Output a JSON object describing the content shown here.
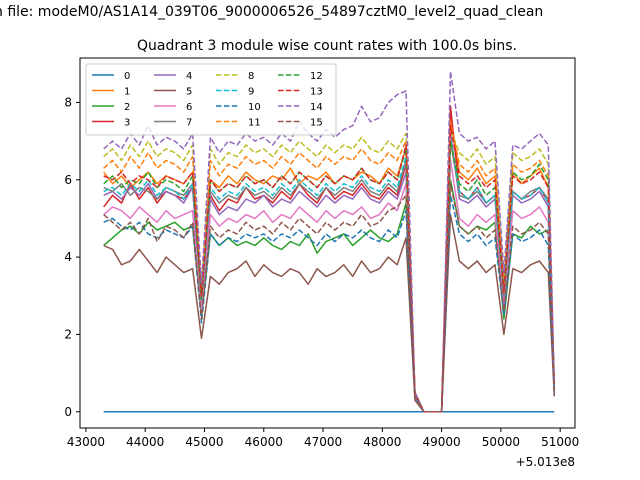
{
  "figure": {
    "suptitle": "n file: modeM0/AS1A14_039T06_9000006526_54897cztM0_level2_quad_clean",
    "title": "Quadrant 3 module wise count rates with 100.0s bins."
  },
  "chart_data": {
    "type": "line",
    "title": "Quadrant 3 module wise count rates with 100.0s bins.",
    "xlabel": "",
    "ylabel": "",
    "x_offset_label": "+5.013e8",
    "xlim": [
      42900,
      51250
    ],
    "ylim": [
      -0.42,
      9.15
    ],
    "xticks": [
      43000,
      44000,
      45000,
      46000,
      47000,
      48000,
      49000,
      50000,
      51000
    ],
    "yticks": [
      0,
      2,
      4,
      6,
      8
    ],
    "legend_loc": "upper left",
    "legend_ncol": 4,
    "x": [
      43300,
      43450,
      43600,
      43750,
      43900,
      44050,
      44200,
      44350,
      44500,
      44650,
      44800,
      44950,
      45100,
      45250,
      45400,
      45550,
      45700,
      45850,
      46000,
      46150,
      46300,
      46450,
      46600,
      46750,
      46900,
      47050,
      47200,
      47350,
      47500,
      47650,
      47800,
      47950,
      48100,
      48250,
      48400,
      48550,
      48700,
      48850,
      49000,
      49150,
      49300,
      49450,
      49600,
      49750,
      49900,
      50050,
      50200,
      50350,
      50500,
      50650,
      50800,
      50900
    ],
    "series": [
      {
        "name": "0",
        "color": "#1f77b4",
        "dash": "solid",
        "values": [
          0,
          0,
          0,
          0,
          0,
          0,
          0,
          0,
          0,
          0,
          0,
          0,
          0,
          0,
          0,
          0,
          0,
          0,
          0,
          0,
          0,
          0,
          0,
          0,
          0,
          0,
          0,
          0,
          0,
          0,
          0,
          0,
          0,
          0,
          0,
          0,
          0,
          0,
          0,
          0,
          0,
          0,
          0,
          0,
          0,
          0,
          0,
          0,
          0,
          0,
          0,
          0
        ]
      },
      {
        "name": "1",
        "color": "#ff7f0e",
        "dash": "solid",
        "values": [
          6.2,
          5.9,
          6.1,
          5.8,
          6.0,
          6.2,
          5.9,
          6.1,
          6.0,
          5.9,
          6.2,
          3.0,
          6.0,
          5.8,
          6.1,
          5.9,
          6.2,
          6.0,
          5.9,
          6.1,
          6.0,
          6.3,
          5.9,
          6.1,
          6.0,
          6.2,
          5.9,
          6.1,
          6.0,
          6.2,
          6.1,
          5.9,
          6.3,
          6.1,
          6.8,
          0.5,
          0.0,
          0.0,
          0.0,
          7.6,
          6.2,
          6.0,
          6.3,
          5.9,
          6.1,
          3.3,
          6.2,
          5.9,
          6.1,
          6.3,
          5.8,
          0.7
        ]
      },
      {
        "name": "2",
        "color": "#2ca02c",
        "dash": "solid",
        "values": [
          4.3,
          4.5,
          4.7,
          4.8,
          4.6,
          4.9,
          4.7,
          4.8,
          4.9,
          4.7,
          4.8,
          2.5,
          4.6,
          4.3,
          4.5,
          4.3,
          4.4,
          4.3,
          4.5,
          4.3,
          4.2,
          4.4,
          4.3,
          4.6,
          4.1,
          4.4,
          4.5,
          4.6,
          4.3,
          4.5,
          4.7,
          4.5,
          4.4,
          4.6,
          5.4,
          0.4,
          0.0,
          0.0,
          0.0,
          6.0,
          4.8,
          4.6,
          4.8,
          4.7,
          4.9,
          2.4,
          4.6,
          4.5,
          4.8,
          4.6,
          4.7,
          0.5
        ]
      },
      {
        "name": "3",
        "color": "#d62728",
        "dash": "solid",
        "values": [
          5.3,
          5.6,
          5.4,
          5.9,
          5.5,
          5.8,
          5.4,
          5.7,
          5.6,
          5.5,
          5.8,
          2.8,
          5.6,
          5.2,
          5.5,
          5.4,
          5.8,
          5.5,
          5.6,
          5.4,
          5.7,
          5.5,
          5.9,
          5.6,
          5.4,
          5.8,
          5.5,
          5.7,
          5.6,
          5.9,
          5.6,
          5.5,
          5.8,
          5.6,
          6.4,
          0.5,
          0.0,
          0.0,
          0.0,
          7.9,
          5.7,
          5.5,
          5.8,
          5.4,
          5.6,
          3.0,
          5.7,
          5.5,
          5.6,
          5.8,
          5.4,
          0.6
        ]
      },
      {
        "name": "4",
        "color": "#9467bd",
        "dash": "solid",
        "values": [
          5.6,
          5.7,
          5.5,
          5.8,
          5.6,
          5.9,
          5.5,
          5.7,
          5.6,
          5.4,
          5.8,
          2.7,
          5.5,
          5.1,
          5.3,
          5.2,
          5.5,
          5.4,
          5.6,
          5.3,
          5.5,
          5.4,
          5.7,
          5.5,
          5.3,
          5.6,
          5.4,
          5.6,
          5.5,
          5.8,
          5.5,
          5.4,
          5.7,
          5.5,
          6.2,
          0.5,
          0.0,
          0.0,
          0.0,
          7.2,
          5.5,
          5.4,
          5.6,
          5.3,
          5.5,
          2.9,
          5.6,
          5.4,
          5.5,
          5.7,
          5.3,
          0.6
        ]
      },
      {
        "name": "5",
        "color": "#8c564b",
        "dash": "solid",
        "values": [
          4.3,
          4.2,
          3.8,
          3.9,
          4.2,
          3.9,
          3.6,
          4.0,
          3.8,
          3.6,
          3.7,
          1.9,
          3.5,
          3.3,
          3.6,
          3.7,
          3.9,
          3.5,
          3.8,
          3.6,
          3.5,
          3.7,
          3.6,
          3.3,
          3.7,
          3.5,
          3.6,
          3.8,
          3.5,
          3.9,
          3.6,
          3.7,
          4.0,
          3.8,
          4.5,
          0.3,
          0.0,
          0.0,
          0.0,
          5.1,
          3.9,
          3.7,
          3.9,
          3.6,
          3.8,
          2.0,
          3.7,
          3.6,
          3.8,
          3.9,
          3.6,
          0.4
        ]
      },
      {
        "name": "6",
        "color": "#e377c2",
        "dash": "solid",
        "values": [
          5.1,
          5.3,
          5.2,
          5.0,
          5.3,
          5.1,
          4.9,
          5.2,
          5.0,
          5.1,
          5.2,
          2.6,
          5.1,
          4.8,
          5.0,
          4.9,
          5.1,
          5.0,
          5.2,
          4.9,
          5.1,
          5.0,
          5.3,
          5.1,
          4.9,
          5.2,
          5.0,
          5.2,
          5.1,
          5.3,
          5.0,
          5.1,
          5.4,
          5.2,
          5.9,
          0.4,
          0.0,
          0.0,
          0.0,
          6.5,
          5.0,
          4.8,
          5.1,
          4.9,
          5.1,
          2.7,
          5.2,
          5.0,
          5.1,
          5.3,
          4.9,
          0.5
        ]
      },
      {
        "name": "7",
        "color": "#7f7f7f",
        "dash": "solid",
        "values": [
          5.8,
          5.7,
          5.9,
          5.6,
          5.8,
          5.7,
          5.5,
          5.8,
          5.7,
          5.6,
          5.9,
          2.9,
          5.7,
          5.4,
          5.6,
          5.5,
          5.8,
          5.6,
          5.7,
          5.5,
          5.8,
          5.6,
          5.9,
          5.7,
          5.5,
          5.8,
          5.6,
          5.8,
          5.7,
          6.0,
          5.7,
          5.6,
          5.9,
          5.7,
          6.5,
          0.5,
          0.0,
          0.0,
          0.0,
          7.0,
          5.6,
          5.5,
          5.7,
          5.4,
          5.6,
          3.0,
          5.7,
          5.5,
          5.7,
          5.8,
          5.5,
          0.6
        ]
      },
      {
        "name": "8",
        "color": "#bcbd22",
        "dash": "dashed",
        "values": [
          6.6,
          6.8,
          6.5,
          6.9,
          6.6,
          7.0,
          6.6,
          6.8,
          6.7,
          6.5,
          6.9,
          3.2,
          6.8,
          6.4,
          6.7,
          6.6,
          6.9,
          6.7,
          6.8,
          6.6,
          6.9,
          6.7,
          7.0,
          6.8,
          6.6,
          6.9,
          6.7,
          6.9,
          6.8,
          7.1,
          6.8,
          6.7,
          7.0,
          6.8,
          7.2,
          0.5,
          0.0,
          0.0,
          0.0,
          7.3,
          6.7,
          6.5,
          6.8,
          6.4,
          6.6,
          3.4,
          6.7,
          6.5,
          6.6,
          6.8,
          6.4,
          0.7
        ]
      },
      {
        "name": "9",
        "color": "#17becf",
        "dash": "dashed",
        "values": [
          5.7,
          5.8,
          5.6,
          5.9,
          5.7,
          6.0,
          5.6,
          5.8,
          5.7,
          5.5,
          5.9,
          3.0,
          5.8,
          5.5,
          5.7,
          5.6,
          5.9,
          5.7,
          5.8,
          5.6,
          5.9,
          5.7,
          6.0,
          5.8,
          5.6,
          5.9,
          5.7,
          5.9,
          5.8,
          6.1,
          5.8,
          5.7,
          6.0,
          5.8,
          6.6,
          0.5,
          0.0,
          0.0,
          0.0,
          7.1,
          5.7,
          5.5,
          5.8,
          5.4,
          5.6,
          3.1,
          5.7,
          5.5,
          5.6,
          5.8,
          5.4,
          0.6
        ]
      },
      {
        "name": "10",
        "color": "#1f77b4",
        "dash": "dashed",
        "values": [
          4.9,
          5.0,
          4.8,
          4.7,
          4.9,
          4.6,
          4.5,
          4.7,
          4.6,
          4.5,
          4.8,
          2.3,
          4.6,
          4.3,
          4.5,
          4.4,
          4.6,
          4.5,
          4.6,
          4.4,
          4.6,
          4.5,
          4.7,
          4.5,
          4.3,
          4.6,
          4.4,
          4.6,
          4.5,
          4.7,
          4.5,
          4.4,
          4.7,
          4.5,
          5.2,
          0.4,
          0.0,
          0.0,
          0.0,
          5.6,
          4.6,
          4.4,
          4.6,
          4.3,
          4.5,
          2.5,
          4.6,
          4.4,
          4.5,
          4.7,
          4.3,
          0.5
        ]
      },
      {
        "name": "11",
        "color": "#ff7f0e",
        "dash": "dashed",
        "values": [
          6.3,
          6.5,
          6.2,
          6.6,
          6.3,
          6.7,
          6.3,
          6.5,
          6.4,
          6.2,
          6.6,
          3.1,
          6.5,
          6.1,
          6.4,
          6.3,
          6.6,
          6.4,
          6.5,
          6.3,
          6.6,
          6.4,
          6.7,
          6.5,
          6.3,
          6.6,
          6.4,
          6.6,
          6.5,
          6.8,
          6.5,
          6.4,
          6.7,
          6.5,
          7.0,
          0.5,
          0.0,
          0.0,
          0.0,
          7.5,
          6.4,
          6.2,
          6.5,
          6.1,
          6.3,
          3.3,
          6.4,
          6.2,
          6.3,
          6.5,
          6.1,
          0.6
        ]
      },
      {
        "name": "12",
        "color": "#2ca02c",
        "dash": "dashed",
        "values": [
          5.9,
          6.1,
          5.8,
          6.0,
          5.9,
          6.2,
          5.8,
          6.0,
          5.9,
          5.7,
          6.1,
          2.9,
          6.0,
          5.7,
          5.9,
          5.8,
          6.1,
          5.9,
          6.0,
          5.8,
          6.1,
          5.9,
          6.2,
          6.0,
          5.8,
          6.1,
          5.9,
          6.1,
          6.0,
          6.3,
          6.0,
          5.9,
          6.2,
          6.0,
          6.8,
          0.5,
          0.0,
          0.0,
          0.0,
          7.0,
          5.9,
          5.7,
          6.0,
          5.6,
          5.8,
          3.1,
          6.2,
          6.0,
          6.1,
          6.4,
          6.0,
          0.6
        ]
      },
      {
        "name": "13",
        "color": "#d62728",
        "dash": "dashed",
        "values": [
          6.1,
          6.0,
          6.2,
          5.9,
          6.1,
          6.0,
          5.8,
          6.1,
          6.0,
          5.9,
          6.2,
          3.0,
          6.0,
          5.7,
          5.9,
          5.8,
          6.1,
          5.9,
          6.0,
          5.8,
          6.1,
          5.9,
          6.2,
          6.0,
          5.8,
          6.1,
          5.9,
          6.1,
          6.0,
          6.3,
          6.0,
          5.9,
          6.2,
          6.0,
          6.9,
          0.5,
          0.0,
          0.0,
          0.0,
          7.4,
          6.1,
          5.9,
          6.1,
          5.8,
          6.0,
          3.1,
          6.1,
          5.9,
          6.0,
          6.2,
          5.8,
          0.6
        ]
      },
      {
        "name": "14",
        "color": "#9467bd",
        "dash": "dashed",
        "values": [
          6.8,
          7.0,
          6.8,
          7.2,
          6.9,
          7.4,
          6.9,
          7.1,
          7.0,
          6.8,
          7.2,
          3.3,
          7.1,
          6.7,
          7.0,
          6.9,
          7.2,
          7.0,
          7.1,
          6.9,
          7.2,
          7.0,
          7.5,
          7.2,
          7.0,
          7.3,
          7.1,
          7.3,
          7.4,
          7.9,
          7.5,
          7.6,
          8.0,
          8.2,
          8.3,
          0.5,
          0.0,
          0.0,
          0.0,
          8.8,
          7.2,
          7.0,
          7.1,
          6.8,
          7.0,
          3.6,
          6.9,
          6.8,
          7.0,
          7.2,
          6.9,
          0.7
        ]
      },
      {
        "name": "15",
        "color": "#8c564b",
        "dash": "dashed",
        "values": [
          5.1,
          4.9,
          4.7,
          4.9,
          4.6,
          5.0,
          4.4,
          4.8,
          4.7,
          4.5,
          4.9,
          2.4,
          4.8,
          4.5,
          4.7,
          4.6,
          4.9,
          4.7,
          4.8,
          4.6,
          4.9,
          4.7,
          5.0,
          4.8,
          4.6,
          4.9,
          4.7,
          4.9,
          4.8,
          5.1,
          4.8,
          4.9,
          5.2,
          5.3,
          5.6,
          0.4,
          0.0,
          0.0,
          0.0,
          5.9,
          4.8,
          4.6,
          4.8,
          4.5,
          4.7,
          2.6,
          4.8,
          4.6,
          4.7,
          4.9,
          4.6,
          0.5
        ]
      }
    ]
  }
}
